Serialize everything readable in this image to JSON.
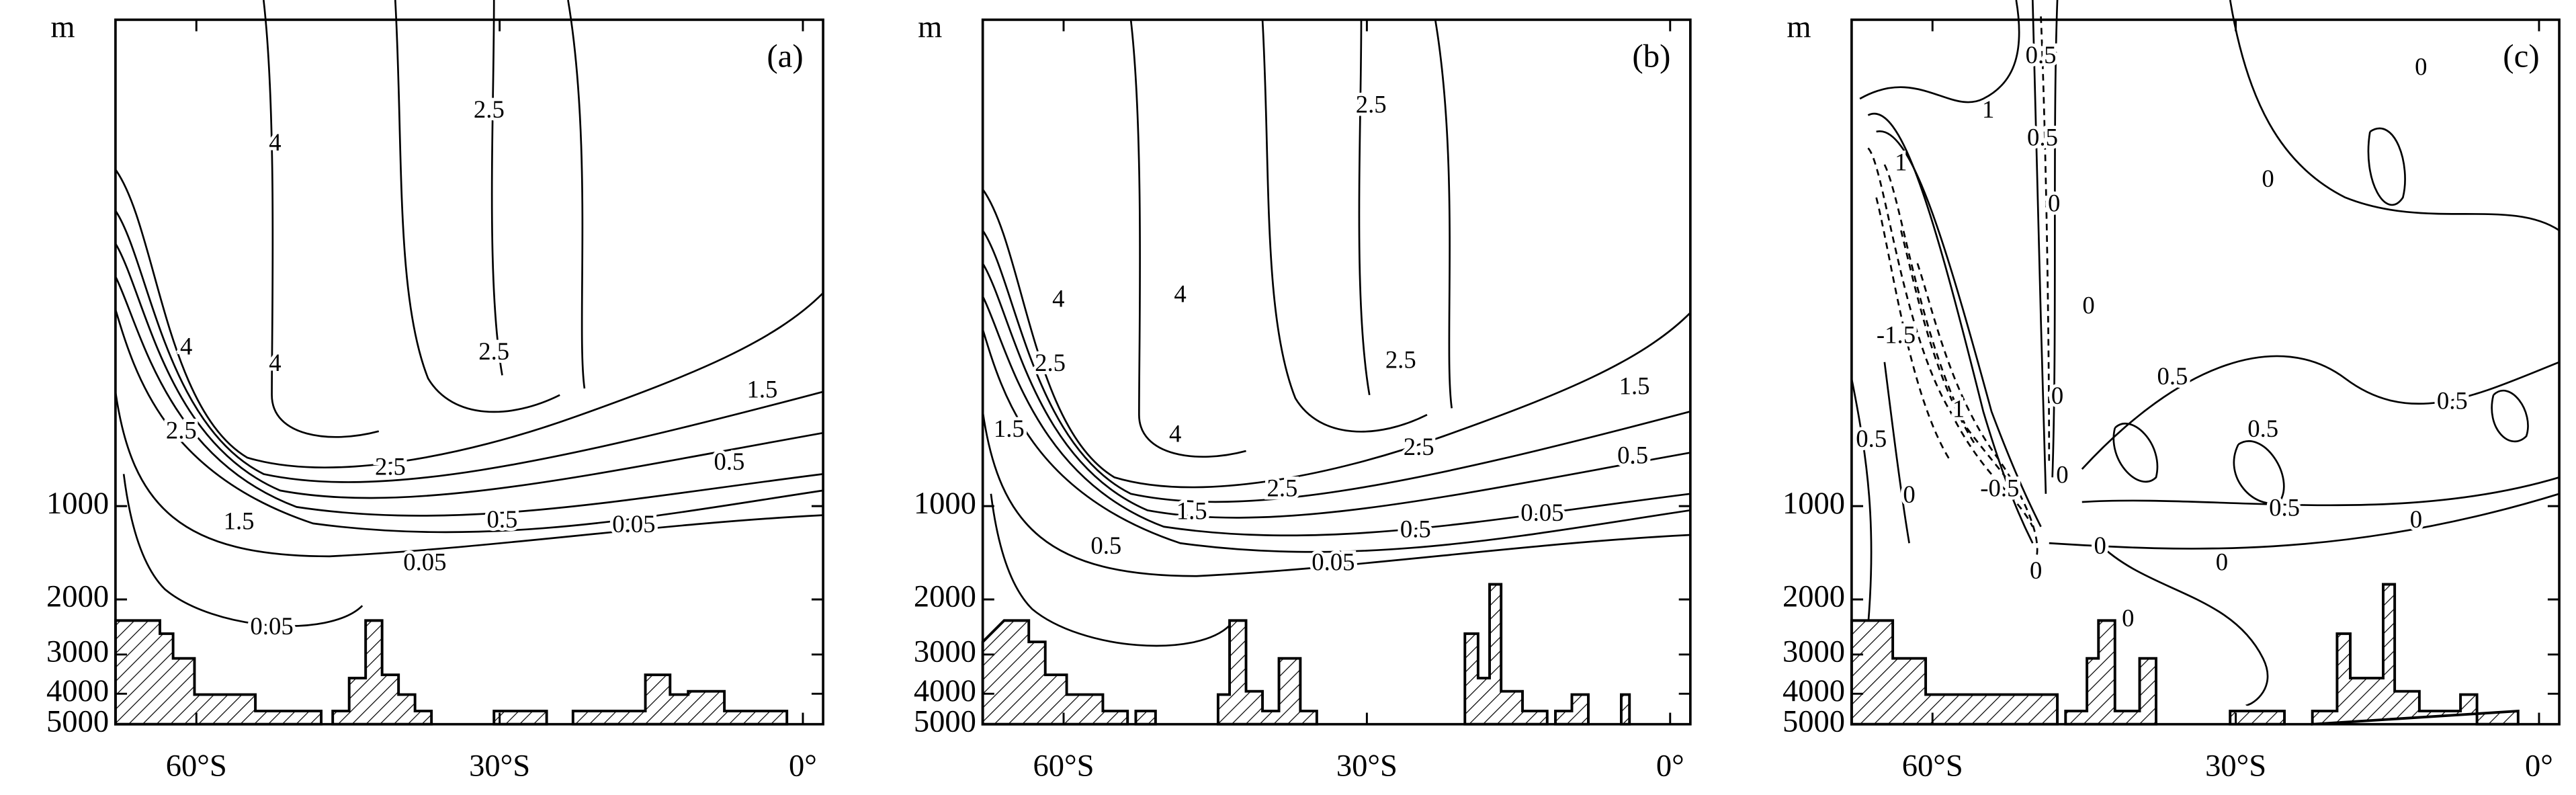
{
  "chart_data": [
    {
      "type": "contour",
      "panel_label": "(a)",
      "y_label": "m",
      "xlim": [
        -68,
        2
      ],
      "xticks": [
        {
          "value": -60,
          "label": "60°S"
        },
        {
          "value": -30,
          "label": "30°S"
        },
        {
          "value": 0,
          "label": "0°"
        }
      ],
      "ylim": [
        0,
        5000
      ],
      "yticks": [
        1000,
        2000,
        3000,
        4000,
        5000
      ],
      "contour_labels": [
        4,
        4,
        2.5,
        2.5,
        4,
        2.5,
        2.5,
        1.5,
        1.5,
        0.5,
        0.5,
        0.05,
        0.05,
        0.05
      ]
    },
    {
      "type": "contour",
      "panel_label": "(b)",
      "y_label": "m",
      "xlim": [
        -68,
        2
      ],
      "xticks": [
        {
          "value": -60,
          "label": "60°S"
        },
        {
          "value": -30,
          "label": "30°S"
        },
        {
          "value": 0,
          "label": "0°"
        }
      ],
      "ylim": [
        0,
        5000
      ],
      "yticks": [
        1000,
        2000,
        3000,
        4000,
        5000
      ],
      "contour_labels": [
        4,
        4,
        4,
        2.5,
        1.5,
        2.5,
        2.5,
        2.5,
        2.5,
        1.5,
        1.5,
        0.5,
        0.5,
        0.5,
        0.05,
        0.05
      ]
    },
    {
      "type": "contour",
      "panel_label": "(c)",
      "y_label": "m",
      "xlim": [
        -68,
        2
      ],
      "xticks": [
        {
          "value": -60,
          "label": "60°S"
        },
        {
          "value": -30,
          "label": "30°S"
        },
        {
          "value": 0,
          "label": "0°"
        }
      ],
      "ylim": [
        0,
        5000
      ],
      "yticks": [
        1000,
        2000,
        3000,
        4000,
        5000
      ],
      "contour_labels": [
        1,
        0.5,
        0.5,
        0,
        0,
        1,
        0,
        0,
        0,
        -1.5,
        1,
        -0.5,
        0,
        0.5,
        0,
        0.5,
        0.5,
        0.5,
        0.5,
        0,
        0,
        0,
        0,
        0
      ]
    }
  ]
}
